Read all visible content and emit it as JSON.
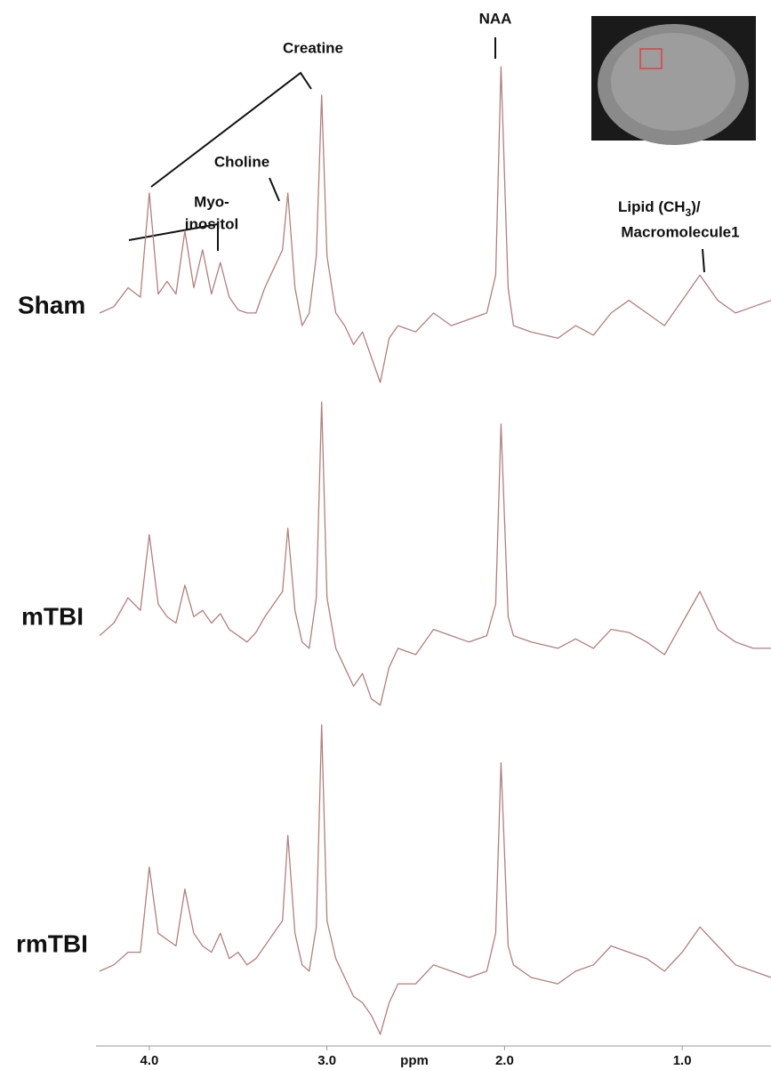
{
  "chart_data": {
    "type": "line",
    "xlabel": "ppm",
    "xlim": [
      4.3,
      0.5
    ],
    "ylim": [
      0,
      100
    ],
    "xticks": [
      {
        "value": 4,
        "label": "4.0"
      },
      {
        "value": 3,
        "label": "3.0"
      },
      {
        "value": 2,
        "label": "2.0"
      },
      {
        "value": 1,
        "label": "1.0"
      }
    ],
    "x": [
      4.28,
      4.2,
      4.12,
      4.05,
      4.0,
      3.95,
      3.9,
      3.85,
      3.8,
      3.75,
      3.7,
      3.65,
      3.6,
      3.55,
      3.5,
      3.45,
      3.4,
      3.35,
      3.3,
      3.25,
      3.22,
      3.18,
      3.14,
      3.1,
      3.06,
      3.03,
      3.0,
      2.95,
      2.9,
      2.85,
      2.8,
      2.75,
      2.7,
      2.65,
      2.6,
      2.5,
      2.4,
      2.3,
      2.2,
      2.1,
      2.05,
      2.02,
      1.98,
      1.95,
      1.85,
      1.7,
      1.6,
      1.5,
      1.4,
      1.3,
      1.2,
      1.1,
      1.0,
      0.9,
      0.8,
      0.7,
      0.6,
      0.5
    ],
    "series": [
      {
        "name": "Sham",
        "color": "#b07f7f",
        "values": [
          22,
          24,
          30,
          27,
          60,
          28,
          32,
          28,
          48,
          30,
          42,
          28,
          38,
          27,
          23,
          22,
          22,
          30,
          36,
          42,
          60,
          30,
          18,
          22,
          40,
          91,
          40,
          22,
          18,
          12,
          16,
          8,
          0,
          14,
          18,
          16,
          22,
          18,
          20,
          22,
          34,
          100,
          30,
          18,
          16,
          14,
          18,
          15,
          22,
          26,
          22,
          18,
          26,
          34,
          26,
          22,
          24,
          26
        ]
      },
      {
        "name": "mTBI",
        "color": "#b07f7f",
        "values": [
          26,
          30,
          38,
          34,
          58,
          36,
          32,
          30,
          42,
          32,
          34,
          30,
          33,
          28,
          26,
          24,
          27,
          32,
          36,
          40,
          60,
          34,
          24,
          22,
          38,
          100,
          38,
          22,
          16,
          10,
          14,
          6,
          4,
          16,
          22,
          20,
          28,
          26,
          24,
          26,
          36,
          93,
          32,
          26,
          24,
          22,
          25,
          22,
          28,
          27,
          24,
          20,
          30,
          40,
          28,
          24,
          22,
          22
        ]
      },
      {
        "name": "rmTBI",
        "color": "#b07f7f",
        "values": [
          22,
          24,
          28,
          28,
          55,
          34,
          32,
          30,
          48,
          34,
          30,
          28,
          34,
          26,
          28,
          24,
          26,
          30,
          34,
          38,
          65,
          34,
          24,
          22,
          36,
          100,
          38,
          26,
          20,
          14,
          12,
          8,
          2,
          12,
          18,
          18,
          24,
          22,
          20,
          22,
          34,
          88,
          30,
          24,
          20,
          18,
          22,
          24,
          30,
          28,
          26,
          22,
          28,
          36,
          30,
          24,
          22,
          20
        ]
      }
    ],
    "annotations": [
      "Creatine",
      "NAA",
      "Choline",
      "Myo-",
      "inositol",
      "Lipid (CH",
      "3",
      ")/",
      "Macromolecule1"
    ]
  }
}
